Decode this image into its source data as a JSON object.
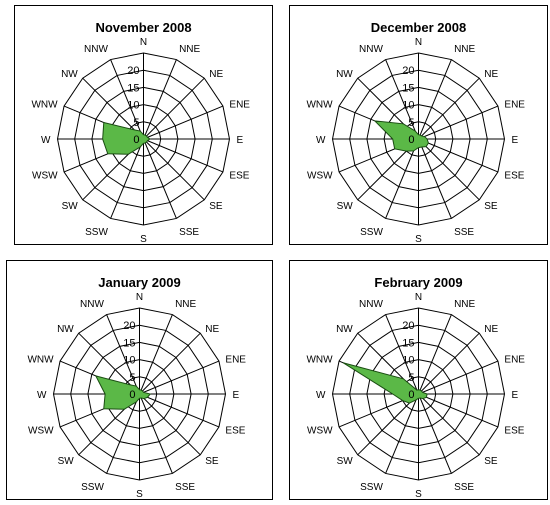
{
  "colors": {
    "fill": "#5bb847",
    "stroke": "#1a4d12",
    "grid": "#000000"
  },
  "chart_data": [
    {
      "type": "radar",
      "title": "November 2008",
      "directions": [
        "N",
        "NNE",
        "NE",
        "ENE",
        "E",
        "ESE",
        "SE",
        "SSE",
        "S",
        "SSW",
        "SW",
        "WSW",
        "W",
        "WNW",
        "NW",
        "NNW"
      ],
      "rticks": [
        "0",
        "5",
        "10",
        "15",
        "20"
      ],
      "rmax": 20,
      "values": [
        1,
        1,
        1,
        1,
        1.5,
        1,
        1,
        1,
        1,
        2,
        5,
        9,
        9.5,
        10,
        3,
        2
      ]
    },
    {
      "type": "radar",
      "title": "December 2008",
      "directions": [
        "N",
        "NNE",
        "NE",
        "ENE",
        "E",
        "ESE",
        "SE",
        "SSE",
        "S",
        "SSW",
        "SW",
        "WSW",
        "W",
        "WNW",
        "NW",
        "NNW"
      ],
      "rticks": [
        "0",
        "5",
        "10",
        "15",
        "20"
      ],
      "rmax": 20,
      "values": [
        1,
        1,
        1,
        1.5,
        2,
        2.5,
        2.5,
        2,
        2,
        3,
        4,
        6,
        6,
        11,
        5,
        2
      ]
    },
    {
      "type": "radar",
      "title": "January 2009",
      "directions": [
        "N",
        "NNE",
        "NE",
        "ENE",
        "E",
        "ESE",
        "SE",
        "SSE",
        "S",
        "SSW",
        "SW",
        "WSW",
        "W",
        "WNW",
        "NW",
        "NNW"
      ],
      "rticks": [
        "0",
        "5",
        "10",
        "15",
        "20"
      ],
      "rmax": 20,
      "values": [
        1,
        1,
        1,
        1,
        2.5,
        2,
        1.5,
        1,
        1,
        2,
        5,
        9,
        8,
        11,
        3,
        2
      ]
    },
    {
      "type": "radar",
      "title": "February 2009",
      "directions": [
        "N",
        "NNE",
        "NE",
        "ENE",
        "E",
        "ESE",
        "SE",
        "SSE",
        "S",
        "SSW",
        "SW",
        "WSW",
        "W",
        "WNW",
        "NW",
        "NNW"
      ],
      "rticks": [
        "0",
        "5",
        "10",
        "15",
        "20"
      ],
      "rmax": 20,
      "values": [
        1,
        1,
        1,
        1,
        2,
        2,
        1.5,
        1,
        1,
        1.5,
        3,
        4,
        6,
        19,
        5,
        1
      ]
    }
  ]
}
